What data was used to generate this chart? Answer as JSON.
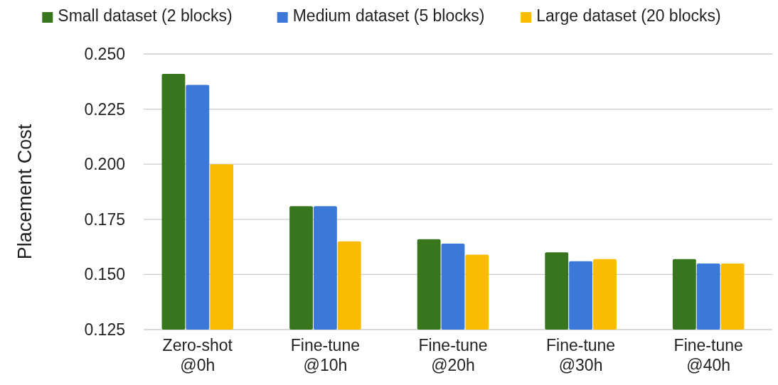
{
  "chart_data": {
    "type": "bar",
    "ylabel": "Placement Cost",
    "categories": [
      "Zero-shot @0h",
      "Fine-tune @10h",
      "Fine-tune @20h",
      "Fine-tune @30h",
      "Fine-tune @40h"
    ],
    "series": [
      {
        "name": "Small dataset (2 blocks)",
        "color": "#38761d",
        "values": [
          0.241,
          0.181,
          0.166,
          0.16,
          0.157
        ]
      },
      {
        "name": "Medium dataset (5 blocks)",
        "color": "#3c78d8",
        "values": [
          0.236,
          0.181,
          0.164,
          0.156,
          0.155
        ]
      },
      {
        "name": "Large dataset (20 blocks)",
        "color": "#f9bc02",
        "values": [
          0.2,
          0.165,
          0.159,
          0.157,
          0.155
        ]
      }
    ],
    "ylim": [
      0.125,
      0.25
    ],
    "yticks": [
      {
        "value": 0.125,
        "label": "0.125"
      },
      {
        "value": 0.15,
        "label": "0.150"
      },
      {
        "value": 0.175,
        "label": "0.175"
      },
      {
        "value": 0.2,
        "label": "0.200"
      },
      {
        "value": 0.225,
        "label": "0.225"
      },
      {
        "value": 0.25,
        "label": "0.250"
      }
    ],
    "grid": "y",
    "legend": "top"
  }
}
